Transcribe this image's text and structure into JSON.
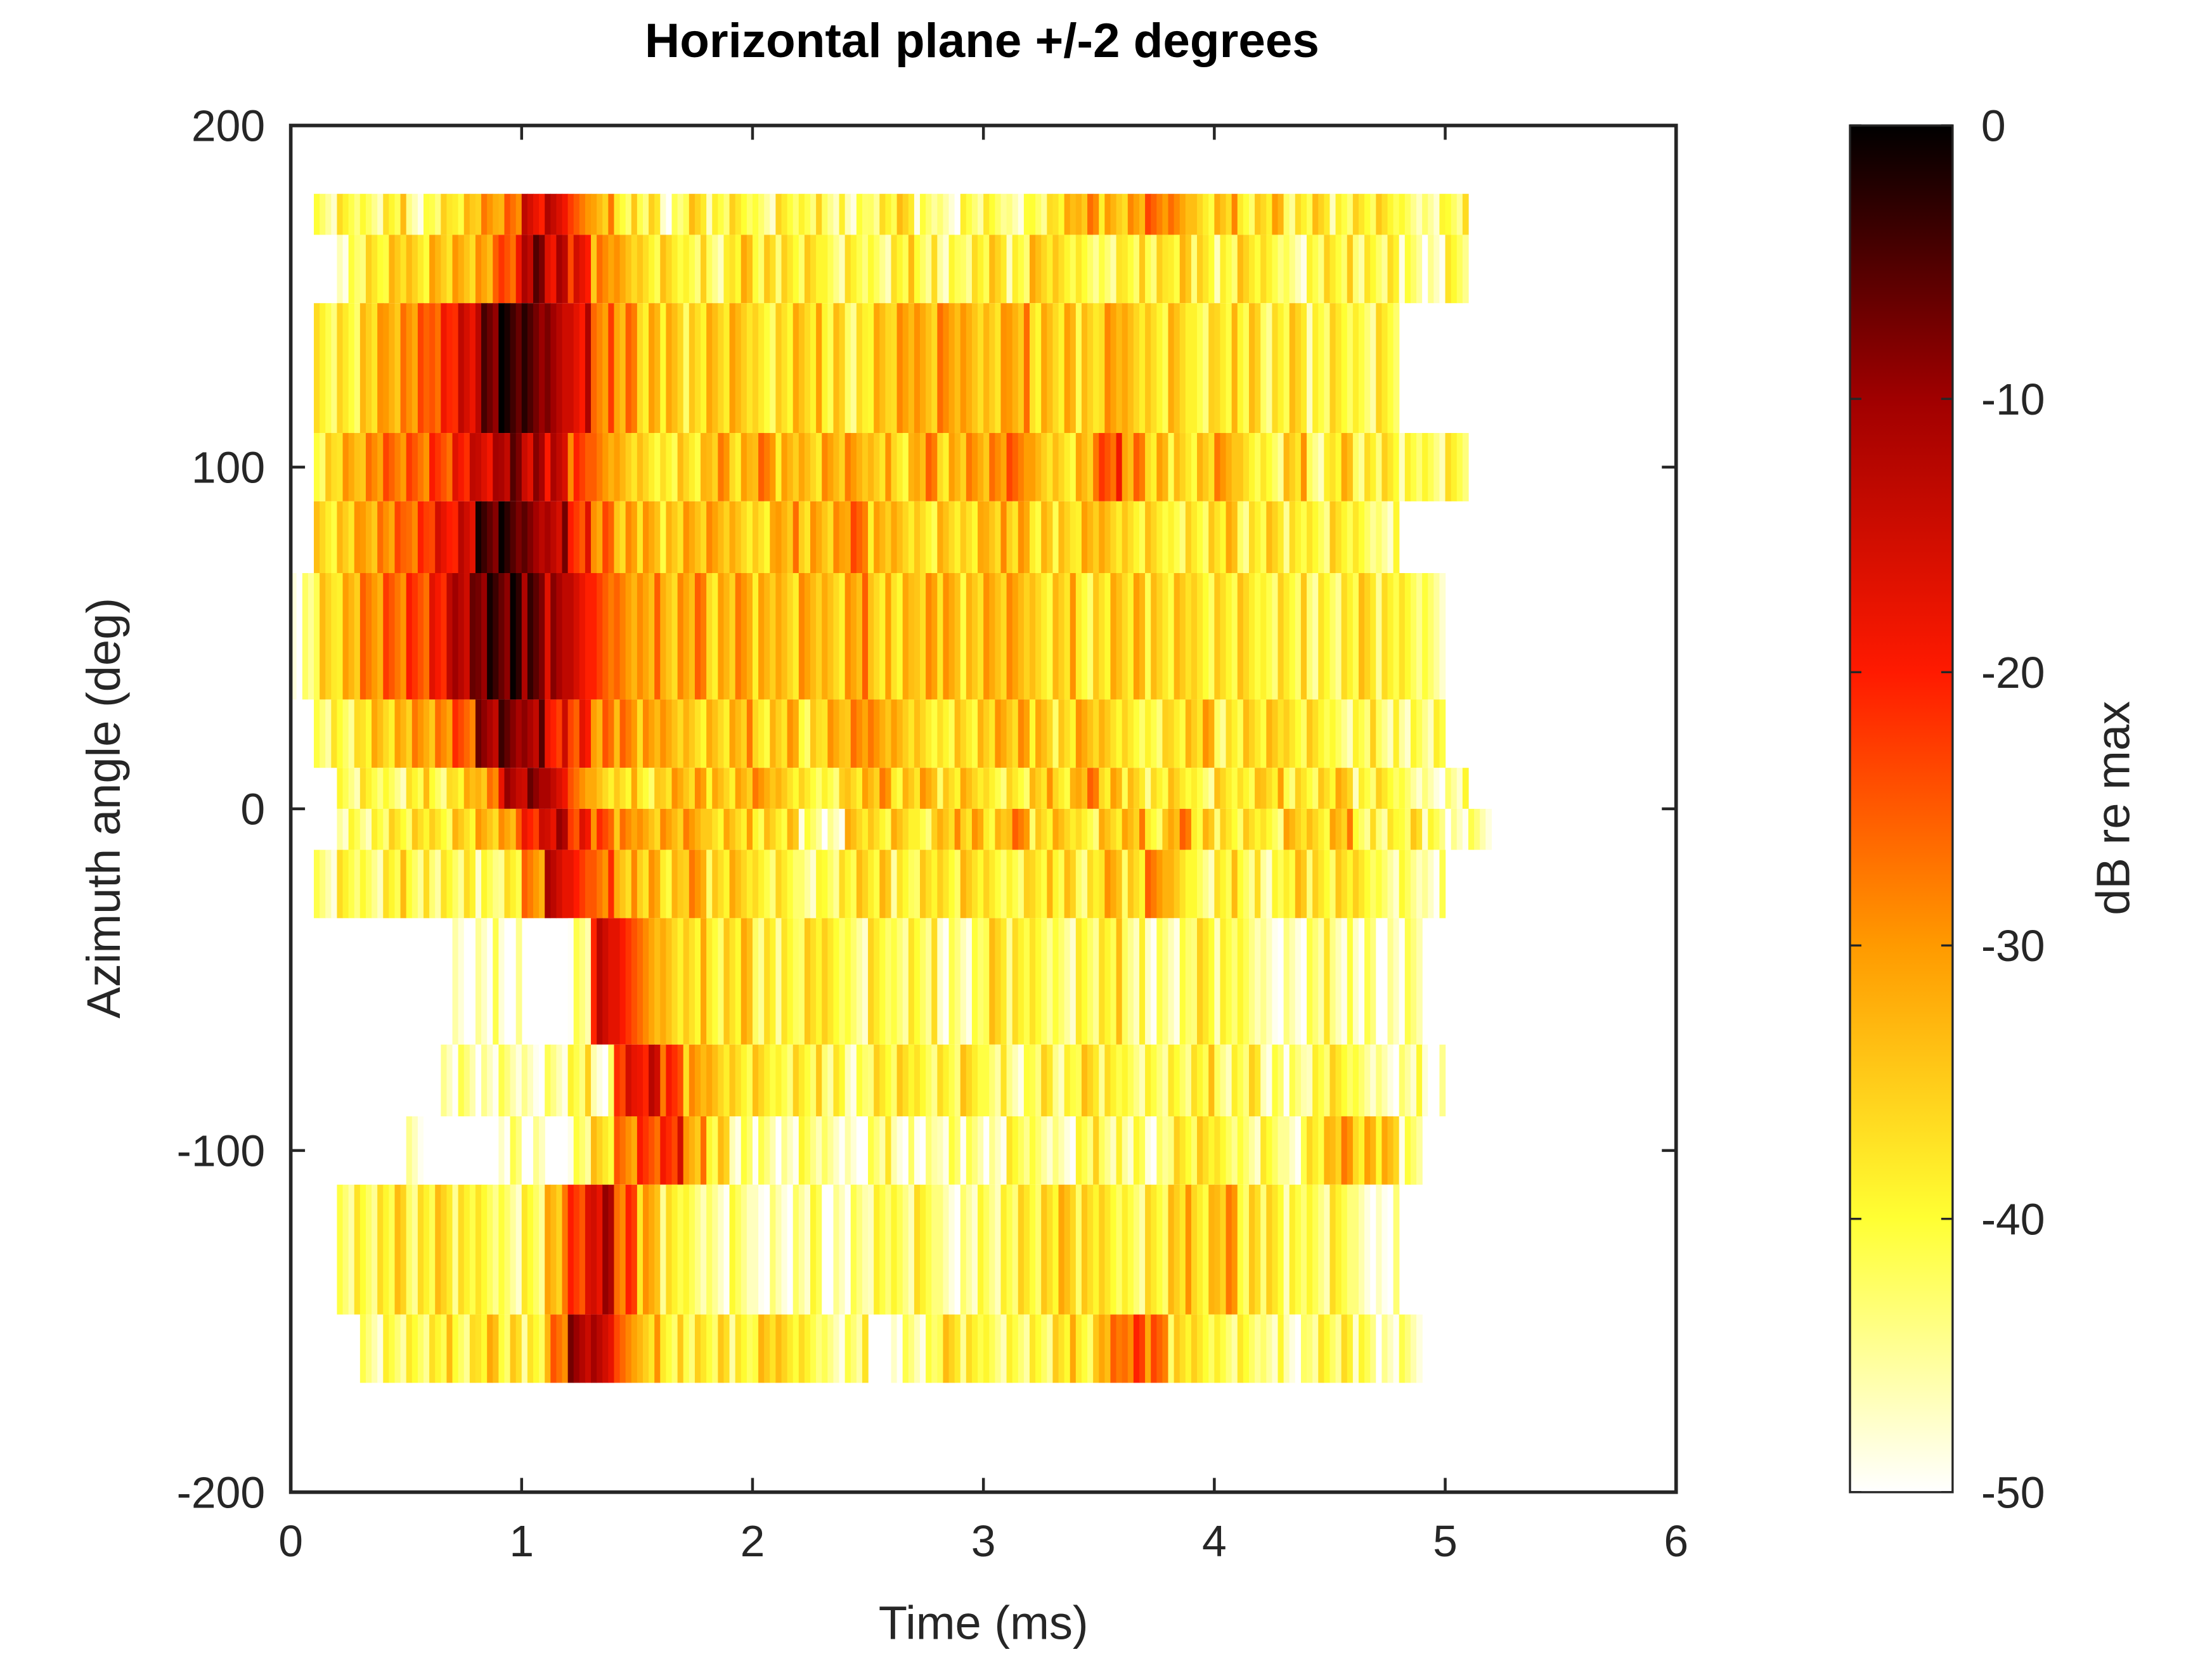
{
  "chart_data": {
    "type": "heatmap",
    "title": "Horizontal plane +/-2 degrees",
    "xlabel": "Time (ms)",
    "ylabel": "Azimuth angle (deg)",
    "colorbar_label": "dB re max",
    "xlim": [
      0,
      6
    ],
    "ylim": [
      -200,
      200
    ],
    "clim": [
      -50,
      0
    ],
    "xticks": [
      0,
      1,
      2,
      3,
      4,
      5,
      6
    ],
    "yticks": [
      200,
      100,
      0,
      -100,
      -200
    ],
    "cticks": [
      0,
      -10,
      -20,
      -30,
      -40,
      -50
    ],
    "colormap": "hot (white = -50 dB, black = 0 dB)",
    "time_bin_ms": 0.1,
    "time_start_ms": 0.0,
    "rows": [
      {
        "y_range": [
          168,
          180
        ],
        "values": [
          -50,
          -45,
          -40,
          -42,
          -38,
          -44,
          -40,
          -36,
          -32,
          -28,
          -18,
          -15,
          -25,
          -32,
          -38,
          -40,
          -45,
          -38,
          -42,
          -40,
          -44,
          -38,
          -40,
          -42,
          -45,
          -40,
          -38,
          -44,
          -48,
          -42,
          -40,
          -45,
          -40,
          -36,
          -30,
          -35,
          -32,
          -28,
          -30,
          -36,
          -33,
          -38,
          -35,
          -40,
          -38,
          -42,
          -40,
          -38,
          -42,
          -44,
          -40,
          -50
        ]
      },
      {
        "y_range": [
          148,
          168
        ],
        "values": [
          -50,
          -50,
          -44,
          -40,
          -36,
          -38,
          -34,
          -32,
          -30,
          -22,
          -10,
          -14,
          -20,
          -30,
          -34,
          -38,
          -36,
          -40,
          -42,
          -36,
          -38,
          -40,
          -38,
          -44,
          -40,
          -42,
          -38,
          -40,
          -44,
          -40,
          -38,
          -42,
          -36,
          -38,
          -40,
          -42,
          -38,
          -40,
          -36,
          -40,
          -42,
          -38,
          -40,
          -44,
          -40,
          -38,
          -42,
          -40,
          -45,
          -48,
          -42,
          -50
        ]
      },
      {
        "y_range": [
          110,
          148
        ],
        "values": [
          -50,
          -40,
          -38,
          -34,
          -30,
          -28,
          -22,
          -18,
          -8,
          -4,
          -6,
          -10,
          -16,
          -26,
          -30,
          -34,
          -36,
          -38,
          -36,
          -34,
          -38,
          -36,
          -34,
          -38,
          -40,
          -36,
          -32,
          -34,
          -30,
          -32,
          -34,
          -30,
          -36,
          -34,
          -38,
          -32,
          -36,
          -38,
          -34,
          -40,
          -36,
          -38,
          -40,
          -38,
          -42,
          -40,
          -42,
          -38,
          -50,
          -50,
          -50,
          -50
        ]
      },
      {
        "y_range": [
          90,
          110
        ],
        "values": [
          -50,
          -38,
          -34,
          -30,
          -28,
          -26,
          -22,
          -18,
          -14,
          -10,
          -12,
          -16,
          -24,
          -30,
          -34,
          -36,
          -38,
          -36,
          -32,
          -34,
          -30,
          -34,
          -36,
          -32,
          -30,
          -34,
          -36,
          -30,
          -34,
          -32,
          -30,
          -28,
          -34,
          -36,
          -32,
          -22,
          -30,
          -34,
          -38,
          -36,
          -32,
          -38,
          -40,
          -34,
          -42,
          -36,
          -40,
          -40,
          -42,
          -44,
          -40,
          -50
        ]
      },
      {
        "y_range": [
          69,
          90
        ],
        "values": [
          -50,
          -36,
          -34,
          -30,
          -28,
          -24,
          -20,
          -16,
          -6,
          -4,
          -8,
          -12,
          -20,
          -28,
          -32,
          -34,
          -36,
          -34,
          -32,
          -34,
          -36,
          -30,
          -34,
          -32,
          -28,
          -34,
          -36,
          -38,
          -34,
          -36,
          -32,
          -34,
          -36,
          -38,
          -34,
          -36,
          -38,
          -36,
          -40,
          -38,
          -36,
          -40,
          -38,
          -40,
          -42,
          -38,
          -40,
          -44,
          -50,
          -50,
          -50,
          -50
        ]
      },
      {
        "y_range": [
          32,
          69
        ],
        "values": [
          -46,
          -38,
          -34,
          -30,
          -26,
          -22,
          -18,
          -10,
          -6,
          -4,
          -8,
          -12,
          -18,
          -24,
          -28,
          -30,
          -32,
          -30,
          -34,
          -32,
          -34,
          -36,
          -32,
          -34,
          -30,
          -34,
          -36,
          -32,
          -34,
          -36,
          -34,
          -32,
          -36,
          -34,
          -38,
          -36,
          -34,
          -38,
          -36,
          -40,
          -38,
          -36,
          -40,
          -38,
          -42,
          -40,
          -38,
          -40,
          -42,
          -44,
          -50,
          -50
        ]
      },
      {
        "y_range": [
          12,
          32
        ],
        "values": [
          -50,
          -42,
          -40,
          -36,
          -34,
          -32,
          -30,
          -26,
          -10,
          -6,
          -10,
          -18,
          -22,
          -28,
          -30,
          -32,
          -34,
          -36,
          -34,
          -32,
          -36,
          -34,
          -38,
          -34,
          -30,
          -32,
          -34,
          -36,
          -38,
          -36,
          -34,
          -32,
          -36,
          -38,
          -34,
          -36,
          -38,
          -40,
          -36,
          -34,
          -40,
          -38,
          -36,
          -40,
          -38,
          -42,
          -40,
          -42,
          -44,
          -42,
          -50,
          -50
        ]
      },
      {
        "y_range": [
          0,
          12
        ],
        "values": [
          -50,
          -50,
          -44,
          -40,
          -42,
          -38,
          -40,
          -36,
          -30,
          -14,
          -10,
          -16,
          -28,
          -34,
          -36,
          -38,
          -34,
          -32,
          -36,
          -34,
          -32,
          -36,
          -38,
          -40,
          -34,
          -32,
          -36,
          -34,
          -38,
          -36,
          -40,
          -38,
          -34,
          -36,
          -30,
          -34,
          -38,
          -40,
          -38,
          -42,
          -36,
          -38,
          -34,
          -40,
          -38,
          -36,
          -42,
          -40,
          -44,
          -46,
          -44,
          -50
        ]
      },
      {
        "y_range": [
          -12,
          0
        ],
        "values": [
          -50,
          -50,
          -44,
          -42,
          -40,
          -38,
          -40,
          -36,
          -32,
          -30,
          -18,
          -14,
          -20,
          -26,
          -30,
          -34,
          -32,
          -30,
          -36,
          -34,
          -38,
          -36,
          -45,
          -48,
          -36,
          -38,
          -34,
          -40,
          -32,
          -34,
          -36,
          -30,
          -38,
          -36,
          -40,
          -34,
          -32,
          -38,
          -30,
          -36,
          -40,
          -38,
          -42,
          -34,
          -36,
          -32,
          -40,
          -42,
          -38,
          -44,
          -48,
          -46
        ]
      },
      {
        "y_range": [
          -32,
          -12
        ],
        "values": [
          -50,
          -46,
          -40,
          -42,
          -38,
          -40,
          -42,
          -40,
          -44,
          -40,
          -30,
          -14,
          -20,
          -26,
          -32,
          -34,
          -36,
          -32,
          -38,
          -36,
          -40,
          -38,
          -44,
          -40,
          -38,
          -36,
          -42,
          -38,
          -40,
          -36,
          -38,
          -40,
          -36,
          -38,
          -40,
          -34,
          -38,
          -30,
          -36,
          -42,
          -38,
          -40,
          -44,
          -36,
          -40,
          -38,
          -40,
          -44,
          -42,
          -46,
          -50,
          -50
        ]
      },
      {
        "y_range": [
          -69,
          -32
        ],
        "values": [
          -50,
          -50,
          -50,
          -50,
          -50,
          -50,
          -50,
          -48,
          -46,
          -48,
          -50,
          -50,
          -46,
          -16,
          -22,
          -30,
          -34,
          -36,
          -38,
          -36,
          -40,
          -42,
          -38,
          -40,
          -44,
          -38,
          -42,
          -40,
          -46,
          -44,
          -38,
          -40,
          -42,
          -44,
          -40,
          -38,
          -42,
          -46,
          -44,
          -40,
          -42,
          -44,
          -48,
          -46,
          -42,
          -44,
          -46,
          -48,
          -46,
          -50,
          -50,
          -50
        ]
      },
      {
        "y_range": [
          -90,
          -69
        ],
        "values": [
          -50,
          -50,
          -50,
          -50,
          -50,
          -50,
          -48,
          -46,
          -48,
          -46,
          -48,
          -44,
          -40,
          -46,
          -20,
          -16,
          -24,
          -32,
          -36,
          -38,
          -36,
          -40,
          -38,
          -42,
          -44,
          -40,
          -38,
          -42,
          -40,
          -36,
          -42,
          -44,
          -40,
          -42,
          -38,
          -40,
          -44,
          -42,
          -40,
          -38,
          -42,
          -40,
          -44,
          -46,
          -42,
          -40,
          -44,
          -46,
          -44,
          -48,
          -50,
          -50
        ]
      },
      {
        "y_range": [
          -110,
          -90
        ],
        "values": [
          -50,
          -50,
          -50,
          -50,
          -50,
          -48,
          -50,
          -50,
          -50,
          -46,
          -48,
          -50,
          -44,
          -38,
          -28,
          -22,
          -20,
          -30,
          -38,
          -44,
          -46,
          -48,
          -44,
          -46,
          -48,
          -42,
          -46,
          -48,
          -44,
          -46,
          -48,
          -42,
          -44,
          -46,
          -40,
          -42,
          -44,
          -46,
          -40,
          -38,
          -42,
          -44,
          -40,
          -46,
          -36,
          -32,
          -34,
          -36,
          -44,
          -50,
          -50,
          -50
        ]
      },
      {
        "y_range": [
          -148,
          -110
        ],
        "values": [
          -50,
          -50,
          -42,
          -40,
          -38,
          -40,
          -38,
          -40,
          -42,
          -44,
          -40,
          -32,
          -20,
          -14,
          -24,
          -34,
          -40,
          -44,
          -46,
          -42,
          -48,
          -46,
          -44,
          -48,
          -46,
          -42,
          -44,
          -40,
          -46,
          -44,
          -42,
          -40,
          -38,
          -36,
          -38,
          -40,
          -42,
          -38,
          -34,
          -36,
          -32,
          -38,
          -40,
          -42,
          -44,
          -40,
          -46,
          -48,
          -50,
          -50,
          -50,
          -50
        ]
      },
      {
        "y_range": [
          -168,
          -148
        ],
        "values": [
          -50,
          -50,
          -50,
          -46,
          -42,
          -40,
          -38,
          -40,
          -36,
          -38,
          -42,
          -28,
          -12,
          -14,
          -26,
          -34,
          -38,
          -40,
          -38,
          -42,
          -36,
          -38,
          -40,
          -44,
          -42,
          -50,
          -46,
          -44,
          -38,
          -40,
          -44,
          -42,
          -40,
          -36,
          -38,
          -30,
          -24,
          -28,
          -38,
          -40,
          -42,
          -40,
          -44,
          -46,
          -42,
          -40,
          -44,
          -48,
          -46,
          -50,
          -50,
          -50
        ]
      }
    ]
  }
}
